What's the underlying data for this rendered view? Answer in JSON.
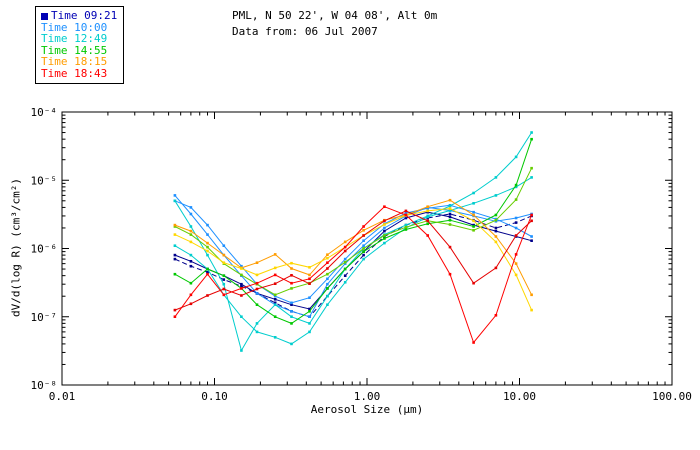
{
  "header": {
    "title_line1": "PML, N 50 22', W 04 08', Alt 0m",
    "title_line2": "Data from: 06 Jul 2007"
  },
  "legend": {
    "swatch_color": "#0000b4",
    "items": [
      {
        "label": "Time 09:21",
        "color": "#0000b4"
      },
      {
        "label": "Time 10:00",
        "color": "#1e90ff"
      },
      {
        "label": "Time 12:49",
        "color": "#00cdcd"
      },
      {
        "label": "Time 14:55",
        "color": "#00c800"
      },
      {
        "label": "Time 18:15",
        "color": "#ff9c00"
      },
      {
        "label": "Time 18:43",
        "color": "#ff0000"
      }
    ]
  },
  "chart_data": {
    "type": "line",
    "title": "PML, N 50 22', W 04 08', Alt 0m — Data from: 06 Jul 2007",
    "xlabel": "Aerosol Size (μm)",
    "ylabel": "dV/d(log R) (cm³/cm²)",
    "xscale": "log",
    "yscale": "log",
    "xlim": [
      0.01,
      100
    ],
    "ylim": [
      1e-08,
      0.0001
    ],
    "grid": false,
    "legend_position": "top-left",
    "x_tick_labels": [
      "0.01",
      "0.10",
      "1.00",
      "10.00",
      "100.00"
    ],
    "y_tick_labels": [
      "10⁻⁸",
      "10⁻⁷",
      "10⁻⁶",
      "10⁻⁵",
      "10⁻⁴"
    ],
    "x": [
      0.055,
      0.07,
      0.09,
      0.115,
      0.15,
      0.19,
      0.25,
      0.32,
      0.42,
      0.55,
      0.72,
      0.95,
      1.3,
      1.8,
      2.5,
      3.5,
      5.0,
      7.0,
      9.5,
      12.0
    ],
    "series": [
      {
        "name": "Time 09:21",
        "color": "#00008b",
        "dash": "5,3",
        "values": [
          7e-07,
          5.5e-07,
          4.5e-07,
          3.5e-07,
          2.8e-07,
          2.2e-07,
          1.6e-07,
          1.2e-07,
          1e-07,
          2e-07,
          4e-07,
          8e-07,
          1.5e-06,
          2.2e-06,
          2.8e-06,
          3.2e-06,
          2.6e-06,
          2e-06,
          2.4e-06,
          3e-06
        ]
      },
      {
        "name": "Time 09:21",
        "color": "#00008b",
        "values": [
          8e-07,
          6.5e-07,
          5e-07,
          4e-07,
          3e-07,
          2.2e-07,
          1.8e-07,
          1.5e-07,
          1.3e-07,
          2.6e-07,
          5e-07,
          9e-07,
          1.8e-06,
          2.8e-06,
          3.4e-06,
          2.9e-06,
          2.2e-06,
          1.8e-06,
          1.5e-06,
          1.3e-06
        ]
      },
      {
        "name": "Time 10:00",
        "color": "#1e90ff",
        "values": [
          6e-06,
          3.2e-06,
          1.6e-06,
          8e-07,
          4e-07,
          2.2e-07,
          1.5e-07,
          1.2e-07,
          1e-07,
          3e-07,
          6e-07,
          1.1e-06,
          2e-06,
          3e-06,
          4e-06,
          3.6e-06,
          3e-06,
          2.5e-06,
          2.8e-06,
          3.2e-06
        ]
      },
      {
        "name": "Time 10:00",
        "color": "#1e90ff",
        "values": [
          5e-06,
          4e-06,
          2.2e-06,
          1.1e-06,
          5.5e-07,
          3e-07,
          2e-07,
          1.6e-07,
          1.9e-07,
          3.6e-07,
          7e-07,
          1.3e-06,
          2.3e-06,
          3.3e-06,
          3.9e-06,
          4.3e-06,
          3.4e-06,
          2.7e-06,
          2e-06,
          1.5e-06
        ]
      },
      {
        "name": "Time 12:49",
        "color": "#00cdcd",
        "values": [
          5e-06,
          2.1e-06,
          8e-07,
          3e-07,
          3.2e-08,
          8e-08,
          1.5e-07,
          1e-07,
          8e-08,
          2e-07,
          5e-07,
          1e-06,
          1.6e-06,
          2.2e-06,
          3e-06,
          4.2e-06,
          6.5e-06,
          1.1e-05,
          2.2e-05,
          5e-05
        ]
      },
      {
        "name": "Time 12:49",
        "color": "#00cdcd",
        "values": [
          1.1e-06,
          8e-07,
          5e-07,
          2.1e-07,
          1e-07,
          6e-08,
          5e-08,
          4e-08,
          6e-08,
          1.5e-07,
          3.2e-07,
          7e-07,
          1.2e-06,
          2e-06,
          2.9e-06,
          3.6e-06,
          4.6e-06,
          6e-06,
          8e-06,
          1.1e-05
        ]
      },
      {
        "name": "Time 14:55",
        "color": "#00c800",
        "values": [
          4.2e-07,
          3.1e-07,
          5e-07,
          4e-07,
          2.6e-07,
          1.5e-07,
          1e-07,
          8e-08,
          1.2e-07,
          2.6e-07,
          5e-07,
          9e-07,
          1.4e-06,
          1.9e-06,
          2.3e-06,
          2.6e-06,
          2.1e-06,
          3.1e-06,
          8.5e-06,
          4e-05
        ]
      },
      {
        "name": "Time 14:55",
        "color": "#66cd00",
        "values": [
          2.1e-06,
          1.6e-06,
          1.05e-06,
          6e-07,
          4.1e-07,
          3e-07,
          2.1e-07,
          2.6e-07,
          3.1e-07,
          4.2e-07,
          6.3e-07,
          1e-06,
          1.55e-06,
          2.05e-06,
          2.55e-06,
          2.25e-06,
          1.85e-06,
          2.6e-06,
          5.2e-06,
          1.5e-05
        ]
      },
      {
        "name": "Time 18:15",
        "color": "#ff9c00",
        "values": [
          2.2e-06,
          1.8e-06,
          1.2e-06,
          8e-07,
          5.2e-07,
          6.2e-07,
          8.2e-07,
          5.1e-07,
          4.1e-07,
          8.1e-07,
          1.25e-06,
          1.85e-06,
          2.6e-06,
          3.1e-06,
          4.1e-06,
          5.1e-06,
          3.1e-06,
          1.5e-06,
          6e-07,
          2.1e-07
        ]
      },
      {
        "name": "Time 18:15",
        "color": "#ffd700",
        "values": [
          1.6e-06,
          1.25e-06,
          9.2e-07,
          6.2e-07,
          5.1e-07,
          4.1e-07,
          5.2e-07,
          6.1e-07,
          5.3e-07,
          7.2e-07,
          1.05e-06,
          1.55e-06,
          2.25e-06,
          3.05e-06,
          3.55e-06,
          3.85e-06,
          2.55e-06,
          1.25e-06,
          4.1e-07,
          1.25e-07
        ]
      },
      {
        "name": "Time 18:43",
        "color": "#ff0000",
        "values": [
          1e-07,
          2.1e-07,
          4.2e-07,
          2.1e-07,
          2.6e-07,
          3.1e-07,
          4.1e-07,
          3.1e-07,
          3.6e-07,
          6.2e-07,
          1.05e-06,
          2.1e-06,
          4.1e-06,
          3.1e-06,
          1.55e-06,
          4.2e-07,
          4.2e-08,
          1.05e-07,
          8.2e-07,
          3.1e-06
        ]
      },
      {
        "name": "Time 18:43",
        "color": "#e60000",
        "values": [
          1.25e-07,
          1.55e-07,
          2.05e-07,
          2.55e-07,
          2.05e-07,
          2.55e-07,
          3.05e-07,
          4.05e-07,
          3.05e-07,
          5.1e-07,
          9.2e-07,
          1.55e-06,
          2.55e-06,
          3.55e-06,
          2.55e-06,
          1.05e-06,
          3.1e-07,
          5.2e-07,
          1.55e-06,
          2.55e-06
        ]
      }
    ]
  }
}
